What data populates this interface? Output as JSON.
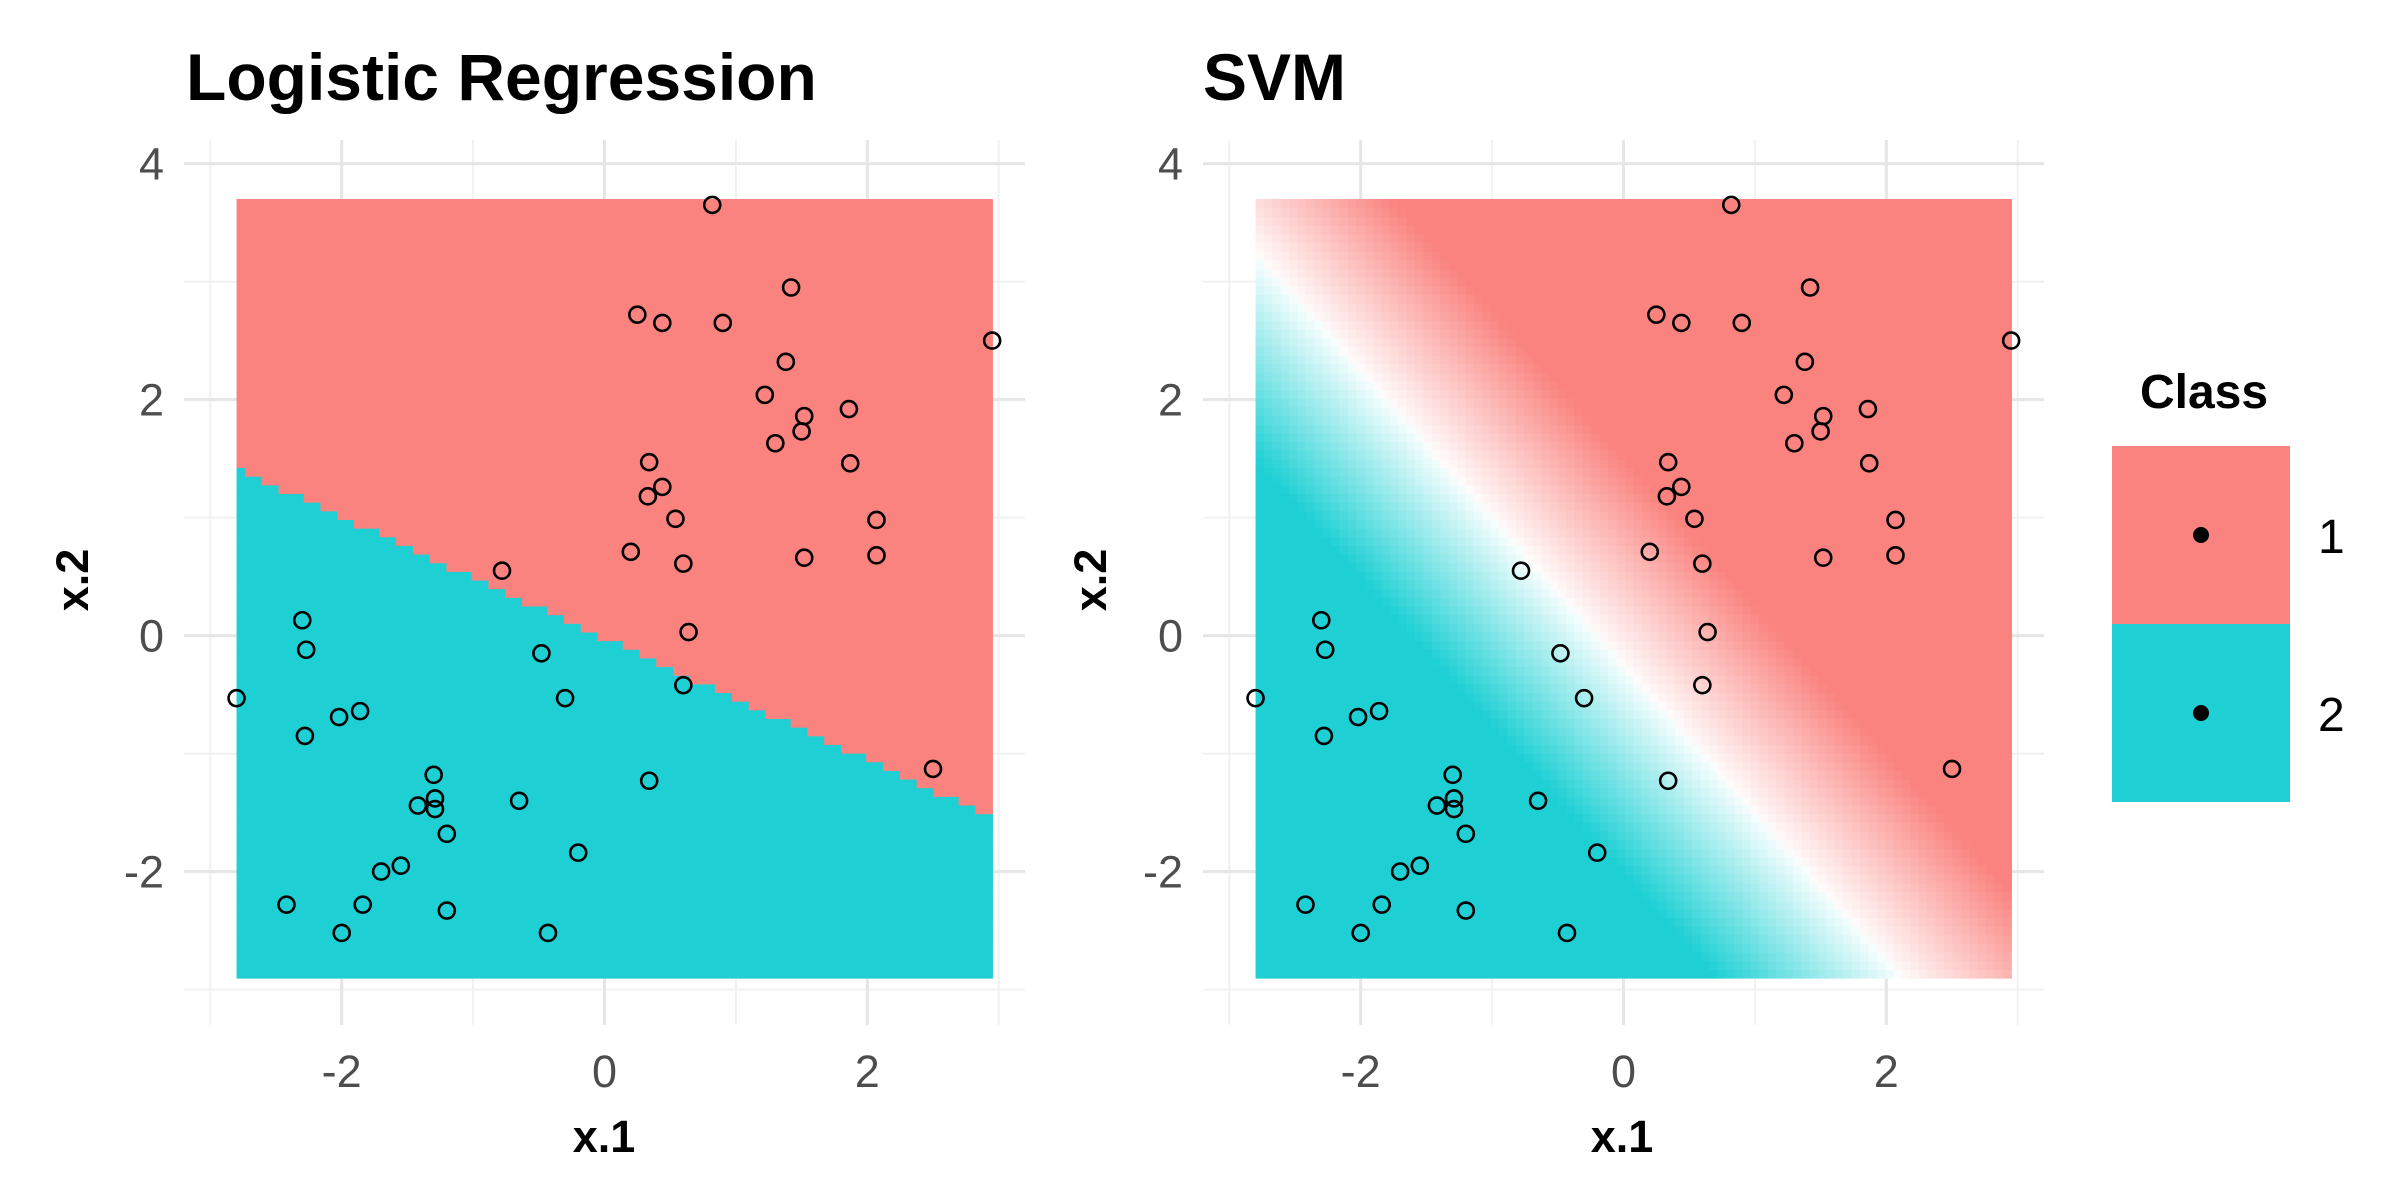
{
  "chart_data": [
    {
      "type": "scatter",
      "title": "Logistic Regression",
      "xlabel": "x.1",
      "ylabel": "x.2",
      "xlim": [
        -3.2,
        3.2
      ],
      "ylim": [
        -3.3,
        4.2
      ],
      "xticks": [
        -2,
        0,
        2
      ],
      "xtick_labels": [
        "-2",
        "0",
        "2"
      ],
      "yticks": [
        -2,
        0,
        2,
        4
      ],
      "ytick_labels": [
        "-2",
        "0",
        "2",
        "4"
      ],
      "grid": true,
      "background": {
        "type": "decision-region",
        "x_range": [
          -2.8,
          2.95
        ],
        "y_range": [
          -2.9,
          3.7
        ],
        "boundary": {
          "slope": -0.515,
          "intercept": -0.02
        },
        "class_above": "1",
        "class_below": "2",
        "gradient": false
      },
      "points": [
        [
          0.82,
          3.65
        ],
        [
          1.42,
          2.95
        ],
        [
          0.25,
          2.72
        ],
        [
          0.44,
          2.65
        ],
        [
          0.9,
          2.65
        ],
        [
          2.95,
          2.5
        ],
        [
          1.38,
          2.32
        ],
        [
          1.22,
          2.04
        ],
        [
          1.86,
          1.92
        ],
        [
          1.52,
          1.86
        ],
        [
          1.5,
          1.73
        ],
        [
          1.3,
          1.63
        ],
        [
          0.34,
          1.47
        ],
        [
          1.87,
          1.46
        ],
        [
          0.44,
          1.26
        ],
        [
          0.33,
          1.18
        ],
        [
          0.54,
          0.99
        ],
        [
          2.07,
          0.98
        ],
        [
          0.2,
          0.71
        ],
        [
          2.07,
          0.68
        ],
        [
          1.52,
          0.66
        ],
        [
          0.6,
          0.61
        ],
        [
          -0.78,
          0.55
        ],
        [
          0.64,
          0.03
        ],
        [
          -2.3,
          0.13
        ],
        [
          -2.27,
          -0.12
        ],
        [
          -0.48,
          -0.15
        ],
        [
          -2.8,
          -0.53
        ],
        [
          -0.3,
          -0.53
        ],
        [
          0.6,
          -0.42
        ],
        [
          -1.86,
          -0.64
        ],
        [
          -2.02,
          -0.69
        ],
        [
          -2.28,
          -0.85
        ],
        [
          2.5,
          -1.13
        ],
        [
          -1.3,
          -1.18
        ],
        [
          0.34,
          -1.23
        ],
        [
          -1.29,
          -1.38
        ],
        [
          -0.65,
          -1.4
        ],
        [
          -1.42,
          -1.44
        ],
        [
          -1.29,
          -1.47
        ],
        [
          -1.2,
          -1.68
        ],
        [
          -0.2,
          -1.84
        ],
        [
          -1.55,
          -1.95
        ],
        [
          -1.7,
          -2.0
        ],
        [
          -1.2,
          -2.33
        ],
        [
          -2.42,
          -2.28
        ],
        [
          -1.84,
          -2.28
        ],
        [
          -0.43,
          -2.52
        ],
        [
          -2.0,
          -2.52
        ]
      ]
    },
    {
      "type": "scatter",
      "title": "SVM",
      "xlabel": "x.1",
      "ylabel": "x.2",
      "xlim": [
        -3.2,
        3.2
      ],
      "ylim": [
        -3.3,
        4.2
      ],
      "xticks": [
        -2,
        0,
        2
      ],
      "xtick_labels": [
        "-2",
        "0",
        "2"
      ],
      "yticks": [
        -2,
        0,
        2,
        4
      ],
      "ytick_labels": [
        "-2",
        "0",
        "2",
        "4"
      ],
      "grid": true,
      "background": {
        "type": "decision-region",
        "x_range": [
          -2.8,
          2.95
        ],
        "y_range": [
          -2.9,
          3.7
        ],
        "boundary": {
          "slope": -1.25,
          "intercept": -0.25
        },
        "class_above": "1",
        "class_below": "2",
        "gradient": true
      },
      "points": [
        [
          0.82,
          3.65
        ],
        [
          1.42,
          2.95
        ],
        [
          0.25,
          2.72
        ],
        [
          0.44,
          2.65
        ],
        [
          0.9,
          2.65
        ],
        [
          2.95,
          2.5
        ],
        [
          1.38,
          2.32
        ],
        [
          1.22,
          2.04
        ],
        [
          1.86,
          1.92
        ],
        [
          1.52,
          1.86
        ],
        [
          1.5,
          1.73
        ],
        [
          1.3,
          1.63
        ],
        [
          0.34,
          1.47
        ],
        [
          1.87,
          1.46
        ],
        [
          0.44,
          1.26
        ],
        [
          0.33,
          1.18
        ],
        [
          0.54,
          0.99
        ],
        [
          2.07,
          0.98
        ],
        [
          0.2,
          0.71
        ],
        [
          2.07,
          0.68
        ],
        [
          1.52,
          0.66
        ],
        [
          0.6,
          0.61
        ],
        [
          -0.78,
          0.55
        ],
        [
          0.64,
          0.03
        ],
        [
          -2.3,
          0.13
        ],
        [
          -2.27,
          -0.12
        ],
        [
          -0.48,
          -0.15
        ],
        [
          -2.8,
          -0.53
        ],
        [
          -0.3,
          -0.53
        ],
        [
          0.6,
          -0.42
        ],
        [
          -1.86,
          -0.64
        ],
        [
          -2.02,
          -0.69
        ],
        [
          -2.28,
          -0.85
        ],
        [
          2.5,
          -1.13
        ],
        [
          -1.3,
          -1.18
        ],
        [
          0.34,
          -1.23
        ],
        [
          -1.29,
          -1.38
        ],
        [
          -0.65,
          -1.4
        ],
        [
          -1.42,
          -1.44
        ],
        [
          -1.29,
          -1.47
        ],
        [
          -1.2,
          -1.68
        ],
        [
          -0.2,
          -1.84
        ],
        [
          -1.55,
          -1.95
        ],
        [
          -1.7,
          -2.0
        ],
        [
          -1.2,
          -2.33
        ],
        [
          -2.42,
          -2.28
        ],
        [
          -1.84,
          -2.28
        ],
        [
          -0.43,
          -2.52
        ],
        [
          -2.0,
          -2.52
        ]
      ]
    }
  ],
  "legend": {
    "title": "Class",
    "placement": "right",
    "items": [
      {
        "label": "1",
        "color": "#F8766D"
      },
      {
        "label": "2",
        "color": "#00BFC4"
      }
    ]
  },
  "colors": {
    "class1_fill": "#FA837F",
    "class2_fill": "#1ED0D4",
    "grid": "#E6E6E6",
    "point_stroke": "#000000"
  }
}
